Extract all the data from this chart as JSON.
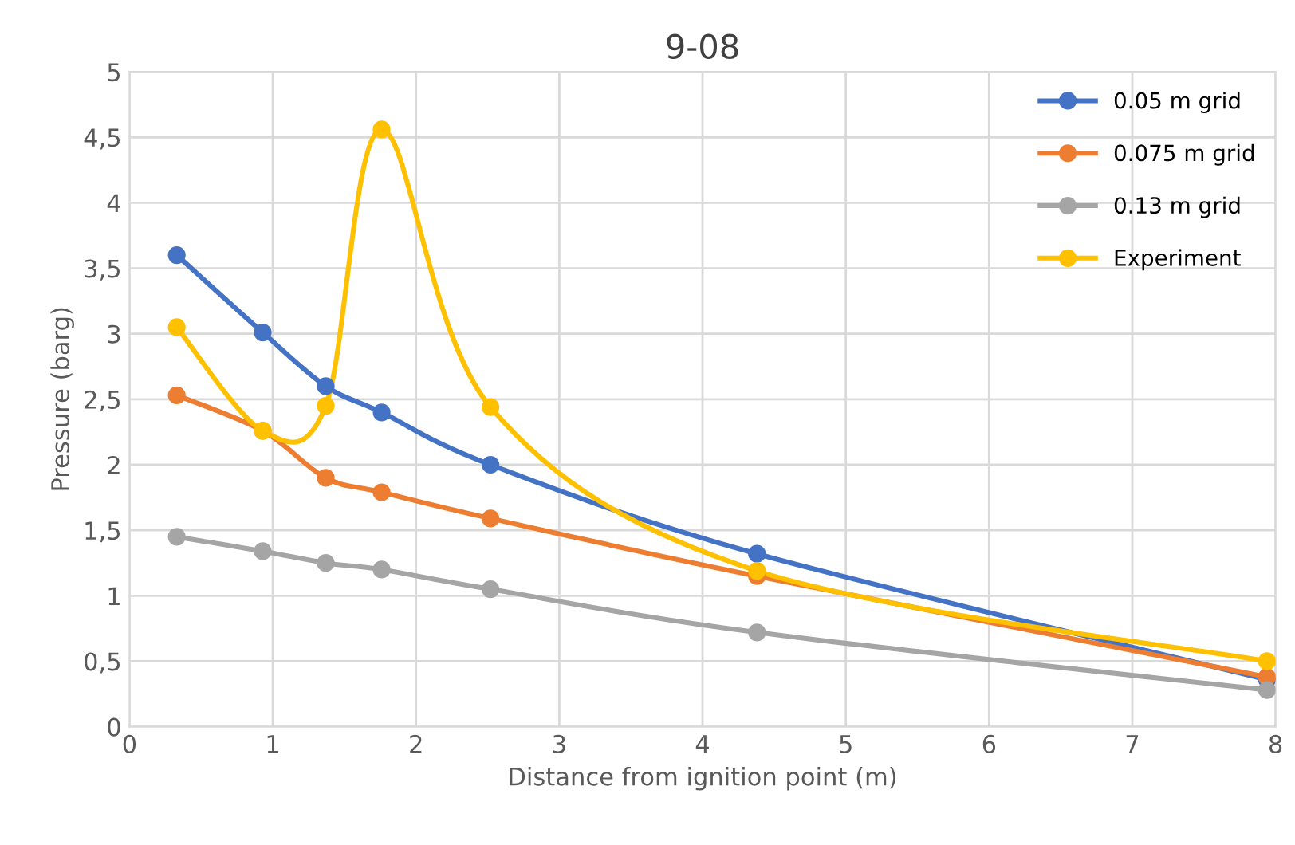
{
  "chart_data": {
    "type": "line",
    "title": "9-08",
    "xlabel": "Distance from ignition point (m)",
    "ylabel": "Pressure (barg)",
    "x": [
      0.33,
      0.93,
      1.37,
      1.76,
      2.52,
      4.38,
      7.94
    ],
    "series": [
      {
        "name": "0.05 m grid",
        "color": "#4472c4",
        "values": [
          3.6,
          3.01,
          2.6,
          2.4,
          2.0,
          1.32,
          0.36
        ]
      },
      {
        "name": "0.075 m grid",
        "color": "#ed7d31",
        "values": [
          2.53,
          2.26,
          1.9,
          1.79,
          1.59,
          1.15,
          0.38
        ]
      },
      {
        "name": "0.13 m grid",
        "color": "#a5a5a5",
        "values": [
          1.45,
          1.34,
          1.25,
          1.2,
          1.05,
          0.72,
          0.28
        ]
      },
      {
        "name": "Experiment",
        "color": "#ffc000",
        "values": [
          3.05,
          2.26,
          2.45,
          4.56,
          2.44,
          1.19,
          0.5
        ]
      }
    ],
    "xlim": [
      0,
      8
    ],
    "xticks": [
      0,
      1,
      2,
      3,
      4,
      5,
      6,
      7,
      8
    ],
    "ylim": [
      0,
      5
    ],
    "yticks": [
      0,
      {
        "value": 0.5,
        "label": "0,5"
      },
      1,
      {
        "value": 1.5,
        "label": "1,5"
      },
      2,
      {
        "value": 2.5,
        "label": "2,5"
      },
      3,
      {
        "value": 3.5,
        "label": "3,5"
      },
      4,
      {
        "value": 4.5,
        "label": "4,5"
      },
      5
    ],
    "grid": true,
    "legend": "right",
    "marker": "circle",
    "line_style": "solid"
  }
}
